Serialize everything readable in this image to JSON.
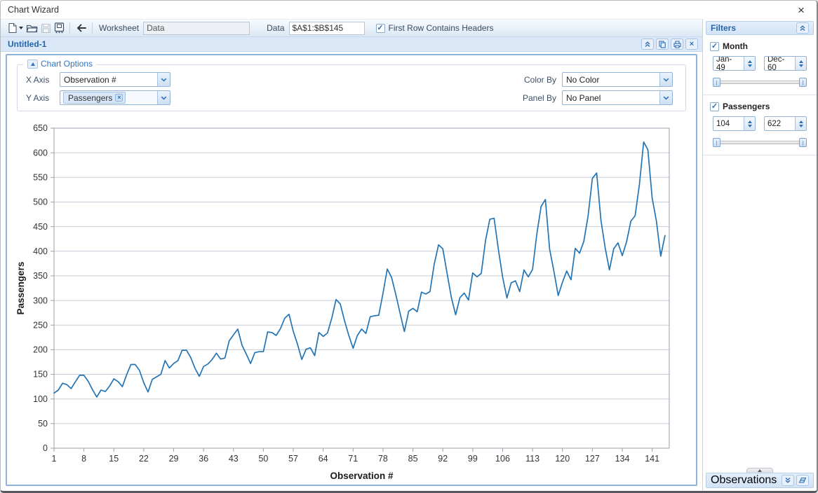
{
  "window": {
    "title": "Chart Wizard"
  },
  "icons": {
    "close": "×",
    "check": "✓",
    "chip_remove": "×"
  },
  "toolbar": {
    "worksheet_label": "Worksheet",
    "worksheet_value": "Data",
    "data_label": "Data",
    "data_range_value": "$A$1:$B$145",
    "first_row_label": "First Row Contains Headers",
    "first_row_checked": true
  },
  "document": {
    "tab_title": "Untitled-1"
  },
  "chart_options": {
    "panel_title": "Chart Options",
    "x_axis_label": "X Axis",
    "x_axis_value": "Observation #",
    "y_axis_label": "Y Axis",
    "y_axis_chip": "Passengers",
    "color_by_label": "Color By",
    "color_by_value": "No Color",
    "panel_by_label": "Panel By",
    "panel_by_value": "No Panel"
  },
  "filters": {
    "header": "Filters",
    "month": {
      "label": "Month",
      "checked": true,
      "from": "Jan-49",
      "to": "Dec-60"
    },
    "passengers": {
      "label": "Passengers",
      "checked": true,
      "from": "104",
      "to": "622"
    }
  },
  "observations": {
    "header": "Observations"
  },
  "colors": {
    "accent_blue": "#2464ad",
    "panel_blue": "#d9e7f7",
    "border_blue": "#8db3dd",
    "line": "#2374b5",
    "gridline": "#c7cdd8"
  },
  "chart_data": {
    "type": "line",
    "title": "",
    "xlabel": "Observation #",
    "ylabel": "Passengers",
    "xlim": [
      1,
      145
    ],
    "ylim": [
      0,
      650
    ],
    "y_tick_step": 50,
    "x_ticks": [
      1,
      8,
      15,
      22,
      29,
      36,
      43,
      50,
      57,
      64,
      71,
      78,
      85,
      92,
      99,
      106,
      113,
      120,
      127,
      134,
      141
    ],
    "grid": "horizontal",
    "legend": "none",
    "line_color": "#2374b5",
    "series": [
      {
        "name": "Passengers",
        "values": [
          112,
          118,
          132,
          129,
          121,
          135,
          148,
          148,
          136,
          119,
          104,
          118,
          115,
          126,
          141,
          135,
          125,
          149,
          170,
          170,
          158,
          133,
          114,
          140,
          145,
          150,
          178,
          163,
          172,
          178,
          199,
          199,
          184,
          162,
          146,
          166,
          171,
          180,
          193,
          181,
          183,
          218,
          230,
          242,
          209,
          191,
          172,
          194,
          196,
          196,
          236,
          235,
          229,
          243,
          264,
          272,
          237,
          211,
          180,
          201,
          204,
          188,
          235,
          227,
          234,
          264,
          302,
          293,
          259,
          229,
          203,
          229,
          242,
          233,
          267,
          269,
          270,
          315,
          364,
          347,
          312,
          274,
          237,
          278,
          284,
          277,
          317,
          313,
          318,
          374,
          413,
          405,
          355,
          306,
          271,
          306,
          315,
          301,
          356,
          348,
          355,
          422,
          465,
          467,
          404,
          347,
          305,
          336,
          340,
          318,
          362,
          348,
          363,
          435,
          491,
          505,
          404,
          359,
          310,
          337,
          360,
          342,
          406,
          396,
          420,
          472,
          548,
          559,
          463,
          407,
          362,
          405,
          417,
          391,
          419,
          461,
          472,
          535,
          622,
          606,
          508,
          461,
          390,
          432
        ]
      }
    ]
  }
}
